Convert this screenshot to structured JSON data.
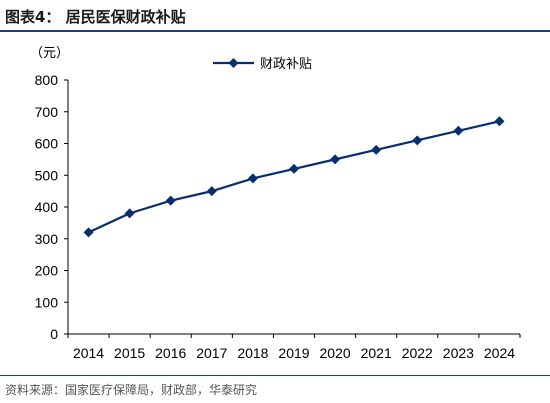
{
  "header": {
    "title": "图表4： 居民医保财政补贴"
  },
  "footer": {
    "source": "资料来源：国家医疗保障局，财政部，华泰研究"
  },
  "chart_data": {
    "type": "line",
    "unit_label": "（元）",
    "categories": [
      "2014",
      "2015",
      "2016",
      "2017",
      "2018",
      "2019",
      "2020",
      "2021",
      "2022",
      "2023",
      "2024"
    ],
    "series": [
      {
        "name": "财政补贴",
        "values": [
          320,
          380,
          420,
          450,
          490,
          520,
          550,
          580,
          610,
          640,
          670
        ],
        "color": "#0a2d6e",
        "marker": "diamond"
      }
    ],
    "ylim": [
      0,
      800
    ],
    "yticks": [
      0,
      100,
      200,
      300,
      400,
      500,
      600,
      700,
      800
    ],
    "grid": false,
    "legend_position": "top-center"
  }
}
